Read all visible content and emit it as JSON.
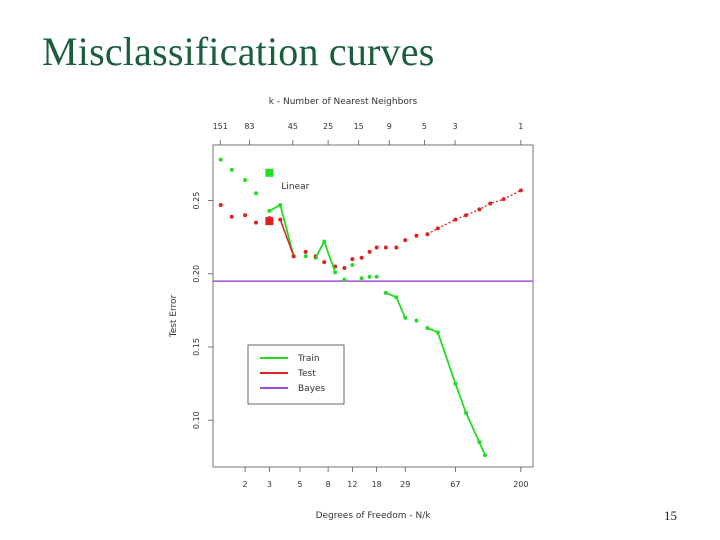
{
  "slide": {
    "title": "Misclassification curves",
    "page_number": "15"
  },
  "colors": {
    "title": "#1b5e3b",
    "train": "#22dd22",
    "test": "#dd2222",
    "bayes": "#a64dd6",
    "axis": "#555555"
  },
  "chart_data": {
    "type": "line",
    "title": "",
    "xlabel": "Degrees of Freedom - N/k",
    "x2label": "k -  Number of Nearest Neighbors",
    "ylabel": "Test Error",
    "xscale": "log",
    "xlim": [
      1.17,
      245
    ],
    "ylim": [
      0.068,
      0.288
    ],
    "x_ticks": [
      2,
      3,
      5,
      8,
      12,
      18,
      29,
      67,
      200
    ],
    "x_tick_labels": [
      "2",
      "3",
      "5",
      "8",
      "12",
      "18",
      "29",
      "67",
      "200"
    ],
    "x2_ticks": [
      1.32,
      2.15,
      4.44,
      8,
      13.33,
      22.22,
      40,
      66.67,
      200
    ],
    "x2_tick_labels": [
      "151",
      "83",
      "45",
      "25",
      "15",
      "9",
      "5",
      "3",
      "1"
    ],
    "y_ticks": [
      0.1,
      0.15,
      0.2,
      0.25
    ],
    "y_tick_labels": [
      "0.10",
      "0.15",
      "0.20",
      "0.25"
    ],
    "legend": {
      "position": "bottom-left",
      "entries": [
        "Train",
        "Test",
        "Bayes"
      ]
    },
    "series": [
      {
        "name": "Train",
        "color": "#22dd22",
        "x": [
          1.33,
          1.6,
          2.0,
          2.4,
          3.0,
          3.6,
          4.5,
          5.5,
          6.5,
          7.5,
          9.0,
          10.5,
          12.0,
          14.0,
          16.0,
          18.0,
          21.0,
          25.0,
          29.0,
          35.0,
          42.0,
          50.0,
          67.0,
          80.0,
          100.0,
          110.0
        ],
        "y": [
          0.278,
          0.271,
          0.264,
          0.255,
          0.243,
          0.247,
          0.212,
          0.212,
          0.211,
          0.222,
          0.201,
          0.196,
          0.206,
          0.197,
          0.198,
          0.198,
          0.187,
          0.184,
          0.17,
          0.168,
          0.163,
          0.16,
          0.125,
          0.105,
          0.085,
          0.076
        ]
      },
      {
        "name": "Test",
        "color": "#dd2222",
        "x": [
          1.33,
          1.6,
          2.0,
          2.4,
          3.0,
          3.6,
          4.5,
          5.5,
          6.5,
          7.5,
          9.0,
          10.5,
          12.0,
          14.0,
          16.0,
          18.0,
          21.0,
          25.0,
          29.0,
          35.0,
          42.0,
          50.0,
          67.0,
          80.0,
          100.0,
          120.0,
          150.0,
          200.0
        ],
        "y": [
          0.247,
          0.239,
          0.24,
          0.235,
          0.238,
          0.237,
          0.212,
          0.215,
          0.212,
          0.208,
          0.205,
          0.204,
          0.21,
          0.211,
          0.215,
          0.218,
          0.218,
          0.218,
          0.223,
          0.226,
          0.227,
          0.231,
          0.237,
          0.24,
          0.244,
          0.248,
          0.251,
          0.257
        ]
      },
      {
        "name": "Bayes",
        "color": "#a64dd6",
        "type": "hline",
        "y": 0.195
      }
    ],
    "annotations": [
      {
        "label": "Linear",
        "points": [
          {
            "series": "Train",
            "x": 3.0,
            "y": 0.269,
            "marker": "square"
          },
          {
            "series": "Test",
            "x": 3.0,
            "y": 0.236,
            "marker": "square"
          }
        ]
      }
    ],
    "grid": false
  }
}
